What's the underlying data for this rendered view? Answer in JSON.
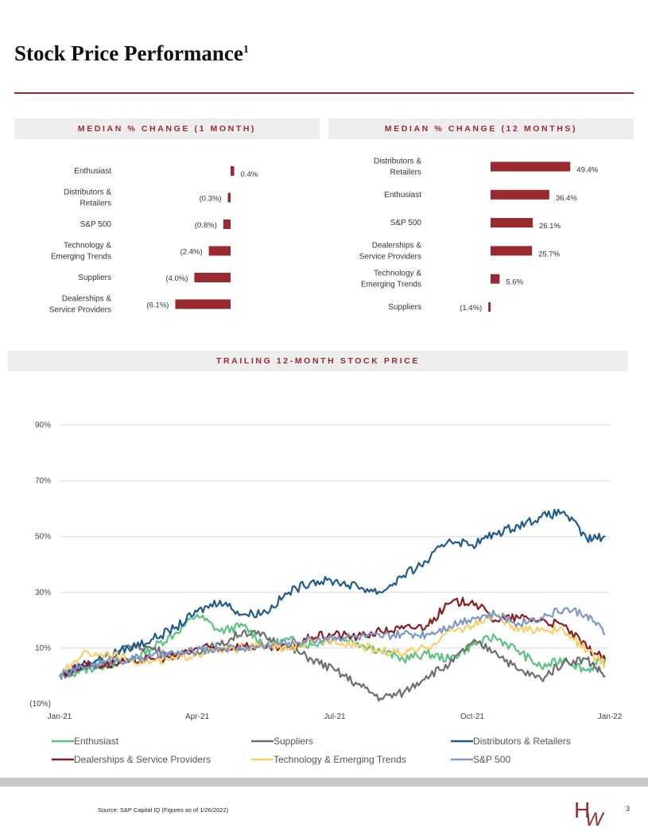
{
  "page": {
    "title": "Stock Price Performance",
    "title_sup": "1",
    "source": "Source: S&P Capital IQ (Figures as of 1/26/2022)",
    "page_number": "3",
    "logo_text": "HW",
    "accent_color": "#9b2a30"
  },
  "chart_data": [
    {
      "type": "bar",
      "orientation": "horizontal",
      "title": "MEDIAN % CHANGE (1 MONTH)",
      "categories": [
        [
          "Enthusiast"
        ],
        [
          "Distributors &",
          "Retailers"
        ],
        [
          "S&P 500"
        ],
        [
          "Technology &",
          "Emerging Trends"
        ],
        [
          "Suppliers"
        ],
        [
          "Dealerships &",
          "Service Providers"
        ]
      ],
      "values": [
        0.4,
        -0.3,
        -0.8,
        -2.4,
        -4.0,
        -6.1
      ],
      "labels": [
        "0.4%",
        "(0.3%)",
        "(0.8%)",
        "(2.4%)",
        "(4.0%)",
        "(6.1%)"
      ],
      "color": "#9b2a30"
    },
    {
      "type": "bar",
      "orientation": "horizontal",
      "title": "MEDIAN % CHANGE (12 MONTHS)",
      "categories": [
        [
          "Distributors &",
          "Retailers"
        ],
        [
          "Enthusiast"
        ],
        [
          "S&P 500"
        ],
        [
          "Dealerships &",
          "Service Providers"
        ],
        [
          "Technology &",
          "Emerging Trends"
        ],
        [
          "Suppliers"
        ]
      ],
      "values": [
        49.4,
        36.4,
        26.1,
        25.7,
        5.6,
        -1.4
      ],
      "labels": [
        "49.4%",
        "36.4%",
        "26.1%",
        "25.7%",
        "5.6%",
        "(1.4%)"
      ],
      "color": "#9b2a30"
    },
    {
      "type": "line",
      "title": "TRAILING 12-MONTH STOCK PRICE",
      "x_ticks": [
        "Jan-21",
        "Apr-21",
        "Jul-21",
        "Oct-21",
        "Jan-22"
      ],
      "y_ticks": [
        90,
        70,
        50,
        30,
        10,
        -10
      ],
      "y_tick_labels": [
        "90%",
        "70%",
        "50%",
        "30%",
        "10%",
        "(10%)"
      ],
      "ylim": [
        -10,
        95
      ],
      "x_unit": "months since Jan-21",
      "series": [
        {
          "name": "Enthusiast",
          "color": "#5cc37f",
          "x": [
            0,
            0.5,
            1,
            1.5,
            2,
            2.5,
            3,
            3.5,
            4,
            4.5,
            5,
            5.5,
            6,
            6.5,
            7,
            7.5,
            8,
            8.5,
            9,
            9.5,
            10,
            10.5,
            11,
            11.5,
            11.9
          ],
          "values": [
            0,
            2,
            4,
            5,
            10,
            15,
            22,
            16,
            18,
            11,
            13,
            11,
            14,
            12,
            9,
            6,
            8,
            6,
            11,
            14,
            9,
            3,
            6,
            2,
            6
          ]
        },
        {
          "name": "Suppliers",
          "color": "#6e6e6e",
          "x": [
            0,
            0.5,
            1,
            1.5,
            2,
            2.5,
            3,
            3.5,
            4,
            4.5,
            5,
            5.5,
            6,
            6.5,
            7,
            7.5,
            8,
            8.5,
            9,
            9.5,
            10,
            10.5,
            11,
            11.5,
            11.9
          ],
          "values": [
            0,
            3,
            4,
            11,
            10,
            7,
            9,
            11,
            16,
            14,
            10,
            6,
            2,
            -3,
            -8,
            -6,
            0,
            4,
            12,
            9,
            2,
            -1,
            5,
            6,
            0
          ]
        },
        {
          "name": "Distributors & Retailers",
          "color": "#1f5a8c",
          "x": [
            0,
            0.5,
            1,
            1.5,
            2,
            2.5,
            3,
            3.5,
            4,
            4.5,
            5,
            5.5,
            6,
            6.5,
            7,
            7.5,
            8,
            8.5,
            9,
            9.5,
            10,
            10.5,
            11,
            11.5,
            11.9
          ],
          "values": [
            0,
            4,
            7,
            10,
            13,
            17,
            23,
            27,
            22,
            23,
            30,
            34,
            34,
            32,
            30,
            36,
            41,
            49,
            47,
            51,
            54,
            57,
            59,
            49,
            50
          ]
        },
        {
          "name": "Dealerships & Service Providers",
          "color": "#8b1a22",
          "x": [
            0,
            0.5,
            1,
            1.5,
            2,
            2.5,
            3,
            3.5,
            4,
            4.5,
            5,
            5.5,
            6,
            6.5,
            7,
            7.5,
            8,
            8.5,
            9,
            9.5,
            10,
            10.5,
            11,
            11.5,
            11.9
          ],
          "values": [
            0,
            4,
            4,
            5,
            6,
            7,
            10,
            10,
            11,
            10,
            10,
            14,
            15,
            14,
            16,
            17,
            18,
            26,
            27,
            20,
            21,
            20,
            18,
            10,
            6
          ]
        },
        {
          "name": "Technology & Emerging Trends",
          "color": "#f7cf6b",
          "x": [
            0,
            0.5,
            1,
            1.5,
            2,
            2.5,
            3,
            3.5,
            4,
            4.5,
            5,
            5.5,
            6,
            6.5,
            7,
            7.5,
            8,
            8.5,
            9,
            9.5,
            10,
            10.5,
            11,
            11.5,
            11.9
          ],
          "values": [
            0,
            8,
            8,
            6,
            5,
            6,
            8,
            9,
            10,
            11,
            10,
            12,
            13,
            11,
            9,
            8,
            10,
            16,
            18,
            22,
            16,
            17,
            16,
            9,
            4
          ]
        },
        {
          "name": "S&P 500",
          "color": "#7e98c5",
          "x": [
            0,
            0.5,
            1,
            1.5,
            2,
            2.5,
            3,
            3.5,
            4,
            4.5,
            5,
            5.5,
            6,
            6.5,
            7,
            7.5,
            8,
            8.5,
            9,
            9.5,
            10,
            10.5,
            11,
            11.5,
            11.9
          ],
          "values": [
            0,
            3,
            5,
            6,
            7,
            8,
            9,
            10,
            10,
            11,
            12,
            13,
            14,
            14,
            14,
            15,
            15,
            18,
            21,
            22,
            19,
            21,
            24,
            22,
            15
          ]
        }
      ]
    }
  ]
}
